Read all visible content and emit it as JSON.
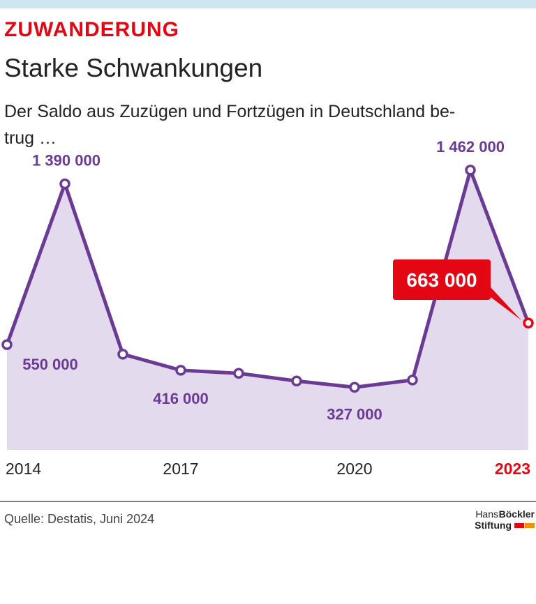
{
  "chart_data": {
    "type": "line",
    "kicker": "ZUWANDERUNG",
    "title": "Starke Schwankungen",
    "subtitle_lines": [
      "Der Saldo aus Zuzügen und Fortzügen in Deutschland be-",
      "trug …"
    ],
    "categories": [
      "2014",
      null,
      null,
      "2017",
      null,
      null,
      "2020",
      null,
      null,
      "2023"
    ],
    "values": [
      550000,
      1390000,
      500000,
      416000,
      400000,
      360000,
      327000,
      365000,
      1462000,
      663000
    ],
    "value_labels": [
      "550 000",
      "1 390 000",
      null,
      "416 000",
      null,
      null,
      "327 000",
      null,
      "1 462 000",
      "663 000"
    ],
    "ylim": [
      0,
      1600000
    ],
    "color": "#6a3a94",
    "area_color": "#e3daee",
    "highlight_color": "#e30613",
    "source": "Quelle: Destatis, Juni 2024",
    "logo": [
      "Hans",
      "Böckler",
      "Stiftung"
    ]
  }
}
